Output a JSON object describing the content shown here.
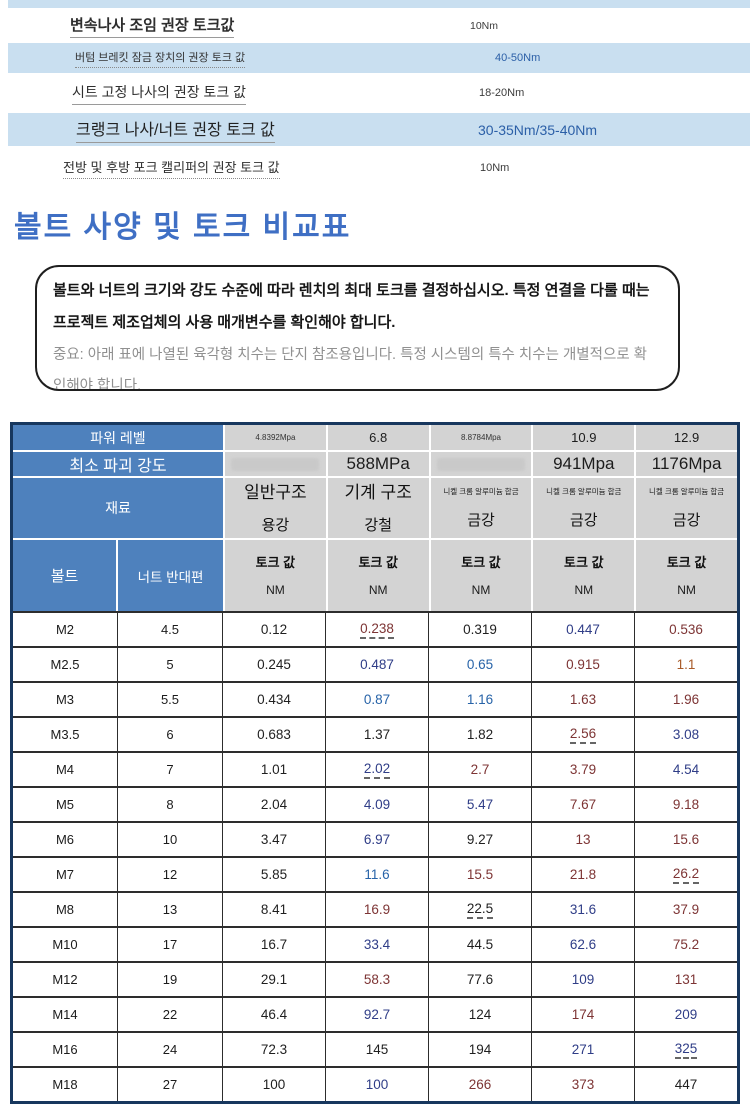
{
  "colors": {
    "light_blue_row": "#c9dff0",
    "header_blue": "#4e81bd",
    "header_gray": "#d3d3d3",
    "table_border_navy": "#17375e",
    "heading_blue": "#3f6fc4",
    "top_value_blue": "#2b5fa7",
    "cell_black": "#1f1f1f",
    "cell_blue": "#2763a8",
    "cell_navy": "#2f3d87",
    "cell_dark_red": "#7d3434",
    "cell_orange": "#a85a28"
  },
  "top_list": {
    "rows": [
      {
        "label": "변속나사 조임 권장 토크값",
        "value": "10Nm",
        "blue_bg": false,
        "size": "lg",
        "value_blue": false
      },
      {
        "label": "버텀 브레킷 잠금 장치의 권장 토크 값",
        "value": "40-50Nm",
        "blue_bg": true,
        "size": "sm",
        "value_blue": true
      },
      {
        "label": "시트 고정 나사의 권장 토크 값",
        "value": "18-20Nm",
        "blue_bg": false,
        "size": "md",
        "value_blue": false
      },
      {
        "label": "크랭크 나사/너트 권장 토크 값",
        "value": "30-35Nm/35-40Nm",
        "blue_bg": true,
        "size": "xl",
        "value_blue": true
      },
      {
        "label": "전방 및 후방 포크 캘리퍼의 권장 토크 값",
        "value": "10Nm",
        "blue_bg": false,
        "size": "md2",
        "value_blue": false
      }
    ]
  },
  "heading": "볼트 사양 및 토크 비교표",
  "note": {
    "bold_text": "볼트와 너트의 크기와 강도 수준에 따라 렌치의 최대 토크를 결정하십시오. 특정 연결을 다룰 때는 프로젝트 제조업체의 사용 매개변수를 확인해야 합니다.",
    "gray_text": "중요: 아래 표에 나열된 육각형 치수는 단지 참조용입니다. 특정 시스템의 특수 치수는 개별적으로 확인해야 합니다."
  },
  "spec_table": {
    "power_row": {
      "label": "파워 레벨",
      "values": [
        {
          "text": "4.8392Mpa",
          "small": true
        },
        {
          "text": "6.8",
          "small": false
        },
        {
          "text": "8.8784Mpa",
          "small": true
        },
        {
          "text": "10.9",
          "small": false
        },
        {
          "text": "12.9",
          "small": false
        }
      ]
    },
    "strength_row": {
      "label": "최소 파괴 강도",
      "values": [
        {
          "text": "",
          "smudge": true
        },
        {
          "text": "588MPa",
          "smudge": false
        },
        {
          "text": "",
          "smudge": true
        },
        {
          "text": "941Mpa",
          "smudge": false
        },
        {
          "text": "1176Mpa",
          "smudge": false
        }
      ]
    },
    "material_row": {
      "label": "재료",
      "values": [
        {
          "top": "일반구조",
          "bottom": "용강",
          "small_top": false
        },
        {
          "top": "기계 구조",
          "bottom": "강철",
          "small_top": false
        },
        {
          "top": "니켈 크롬 알루미늄 합금",
          "bottom": "금강",
          "small_top": true
        },
        {
          "top": "니켈 크롬 알루미늄 합금",
          "bottom": "금강",
          "small_top": true
        },
        {
          "top": "니켈 크롬 알루미늄 합금",
          "bottom": "금강",
          "small_top": true
        }
      ]
    },
    "bolt_label": "볼트",
    "nut_label": "너트 반대편",
    "torque_header": {
      "line1": "토크 값",
      "line2": "NM"
    },
    "data_rows": [
      {
        "bolt": "M2",
        "nut": "4.5",
        "values": [
          {
            "v": "0.12",
            "c": "k"
          },
          {
            "v": "0.238",
            "c": "r",
            "u": true
          },
          {
            "v": "0.319",
            "c": "k"
          },
          {
            "v": "0.447",
            "c": "n"
          },
          {
            "v": "0.536",
            "c": "r"
          }
        ]
      },
      {
        "bolt": "M2.5",
        "nut": "5",
        "values": [
          {
            "v": "0.245",
            "c": "k"
          },
          {
            "v": "0.487",
            "c": "n"
          },
          {
            "v": "0.65",
            "c": "b"
          },
          {
            "v": "0.915",
            "c": "r"
          },
          {
            "v": "1.1",
            "c": "o"
          }
        ]
      },
      {
        "bolt": "M3",
        "nut": "5.5",
        "values": [
          {
            "v": "0.434",
            "c": "k"
          },
          {
            "v": "0.87",
            "c": "b"
          },
          {
            "v": "1.16",
            "c": "b"
          },
          {
            "v": "1.63",
            "c": "r"
          },
          {
            "v": "1.96",
            "c": "r"
          }
        ]
      },
      {
        "bolt": "M3.5",
        "nut": "6",
        "values": [
          {
            "v": "0.683",
            "c": "k"
          },
          {
            "v": "1.37",
            "c": "k"
          },
          {
            "v": "1.82",
            "c": "k"
          },
          {
            "v": "2.56",
            "c": "r",
            "u": true
          },
          {
            "v": "3.08",
            "c": "n"
          }
        ]
      },
      {
        "bolt": "M4",
        "nut": "7",
        "values": [
          {
            "v": "1.01",
            "c": "k"
          },
          {
            "v": "2.02",
            "c": "n",
            "u": true
          },
          {
            "v": "2.7",
            "c": "r"
          },
          {
            "v": "3.79",
            "c": "r"
          },
          {
            "v": "4.54",
            "c": "n"
          }
        ]
      },
      {
        "bolt": "M5",
        "nut": "8",
        "values": [
          {
            "v": "2.04",
            "c": "k"
          },
          {
            "v": "4.09",
            "c": "n"
          },
          {
            "v": "5.47",
            "c": "n"
          },
          {
            "v": "7.67",
            "c": "r"
          },
          {
            "v": "9.18",
            "c": "r"
          }
        ]
      },
      {
        "bolt": "M6",
        "nut": "10",
        "values": [
          {
            "v": "3.47",
            "c": "k"
          },
          {
            "v": "6.97",
            "c": "n"
          },
          {
            "v": "9.27",
            "c": "k"
          },
          {
            "v": "13",
            "c": "r"
          },
          {
            "v": "15.6",
            "c": "r"
          }
        ]
      },
      {
        "bolt": "M7",
        "nut": "12",
        "values": [
          {
            "v": "5.85",
            "c": "k"
          },
          {
            "v": "11.6",
            "c": "b"
          },
          {
            "v": "15.5",
            "c": "r"
          },
          {
            "v": "21.8",
            "c": "r"
          },
          {
            "v": "26.2",
            "c": "r",
            "u": true
          }
        ]
      },
      {
        "bolt": "M8",
        "nut": "13",
        "values": [
          {
            "v": "8.41",
            "c": "k"
          },
          {
            "v": "16.9",
            "c": "r"
          },
          {
            "v": "22.5",
            "c": "k",
            "u": true
          },
          {
            "v": "31.6",
            "c": "n"
          },
          {
            "v": "37.9",
            "c": "r"
          }
        ]
      },
      {
        "bolt": "M10",
        "nut": "17",
        "values": [
          {
            "v": "16.7",
            "c": "k"
          },
          {
            "v": "33.4",
            "c": "n"
          },
          {
            "v": "44.5",
            "c": "k"
          },
          {
            "v": "62.6",
            "c": "n"
          },
          {
            "v": "75.2",
            "c": "r"
          }
        ]
      },
      {
        "bolt": "M12",
        "nut": "19",
        "values": [
          {
            "v": "29.1",
            "c": "k"
          },
          {
            "v": "58.3",
            "c": "r"
          },
          {
            "v": "77.6",
            "c": "k"
          },
          {
            "v": "109",
            "c": "n"
          },
          {
            "v": "131",
            "c": "r"
          }
        ]
      },
      {
        "bolt": "M14",
        "nut": "22",
        "values": [
          {
            "v": "46.4",
            "c": "k"
          },
          {
            "v": "92.7",
            "c": "n"
          },
          {
            "v": "124",
            "c": "k"
          },
          {
            "v": "174",
            "c": "r"
          },
          {
            "v": "209",
            "c": "n"
          }
        ]
      },
      {
        "bolt": "M16",
        "nut": "24",
        "values": [
          {
            "v": "72.3",
            "c": "k"
          },
          {
            "v": "145",
            "c": "k"
          },
          {
            "v": "194",
            "c": "k"
          },
          {
            "v": "271",
            "c": "n"
          },
          {
            "v": "325",
            "c": "n",
            "u": true
          }
        ]
      },
      {
        "bolt": "M18",
        "nut": "27",
        "values": [
          {
            "v": "100",
            "c": "k"
          },
          {
            "v": "100",
            "c": "n"
          },
          {
            "v": "266",
            "c": "r"
          },
          {
            "v": "373",
            "c": "r"
          },
          {
            "v": "447",
            "c": "k"
          }
        ]
      }
    ]
  }
}
